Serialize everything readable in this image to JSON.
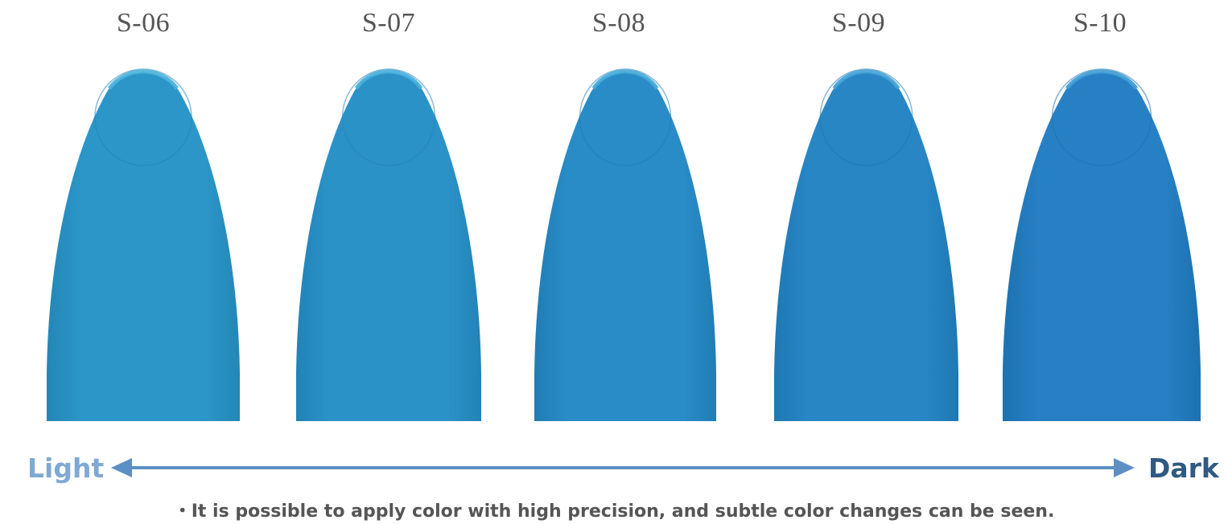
{
  "samples": [
    {
      "label": "S-06",
      "color": "#2c96c8",
      "edge": "#48b3db",
      "shadow": "#2387b6"
    },
    {
      "label": "S-07",
      "color": "#2b92c8",
      "edge": "#46aedb",
      "shadow": "#2283b6"
    },
    {
      "label": "S-08",
      "color": "#298cc7",
      "edge": "#43a8d8",
      "shadow": "#217db4"
    },
    {
      "label": "S-09",
      "color": "#2886c5",
      "edge": "#40a2d6",
      "shadow": "#1f78b2"
    },
    {
      "label": "S-10",
      "color": "#2780c4",
      "edge": "#3e9cd4",
      "shadow": "#1d72b0"
    }
  ],
  "scale": {
    "light_label": "Light",
    "dark_label": "Dark",
    "light_color": "#7fa9d3",
    "dark_color": "#2f5a83",
    "arrow_color": "#5c8fc4"
  },
  "note": "・It is possible to apply color with high precision, and subtle color changes can be seen."
}
